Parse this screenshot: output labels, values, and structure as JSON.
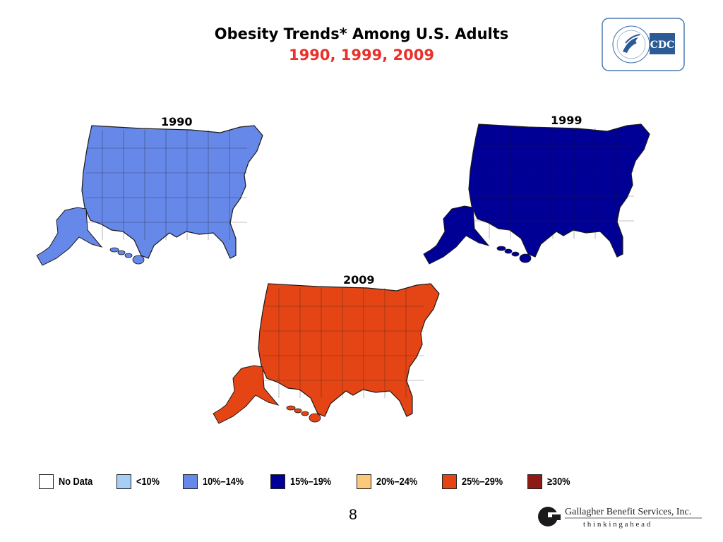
{
  "slide": {
    "title": "Obesity Trends* Among U.S. Adults",
    "subtitle": "1990, 1999, 2009",
    "page_number": "8"
  },
  "logos": {
    "cdc": "CDC",
    "gallagher_name": "Gallagher Benefit Services, Inc.",
    "gallagher_tagline": "t h i n k i n g   a h e a d"
  },
  "maps": [
    {
      "year": "1990",
      "dominant_category": "10%–14%"
    },
    {
      "year": "1999",
      "dominant_category": "15%–19%"
    },
    {
      "year": "2009",
      "dominant_category": "25%–29%"
    }
  ],
  "legend": [
    {
      "label": "No Data",
      "color": "#ffffff"
    },
    {
      "label": "<10%",
      "color": "#a6cef7"
    },
    {
      "label": "10%–14%",
      "color": "#6688e8"
    },
    {
      "label": "15%–19%",
      "color": "#000096"
    },
    {
      "label": "20%–24%",
      "color": "#fcc87a"
    },
    {
      "label": "25%–29%",
      "color": "#e54515"
    },
    {
      "label": "≥30%",
      "color": "#8e1a14"
    }
  ]
}
